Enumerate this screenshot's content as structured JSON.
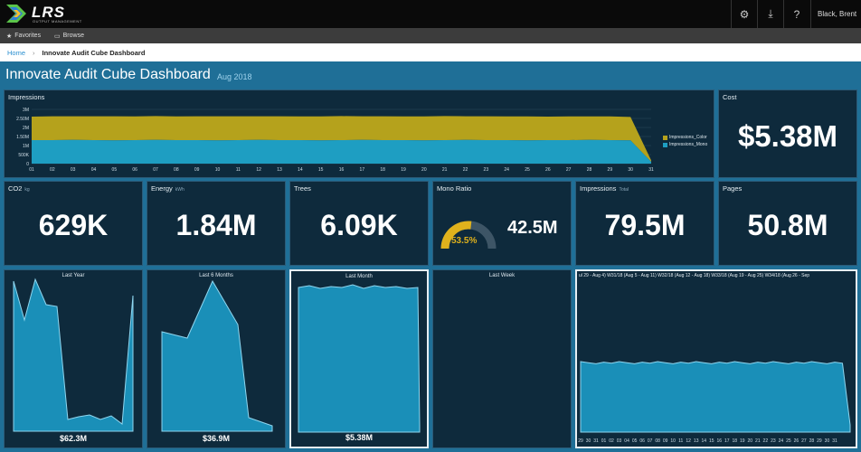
{
  "app": {
    "logo_text": "LRS",
    "logo_sub": "OUTPUT MANAGEMENT",
    "icons": [
      "gear-icon",
      "download-icon",
      "help-icon"
    ],
    "icon_glyphs": [
      "⚙",
      "⤓",
      "?"
    ],
    "user": "Black, Brent"
  },
  "favbar": {
    "favorites": "Favorites",
    "browse": "Browse"
  },
  "breadcrumb": {
    "home": "Home",
    "separator": "›",
    "current": "Innovate Audit Cube Dashboard"
  },
  "dashboard": {
    "title": "Innovate Audit Cube Dashboard",
    "period": "Aug 2018"
  },
  "impressions_chart": {
    "title": "Impressions",
    "legend": [
      "Impressions_Color",
      "Impressions_Mono"
    ]
  },
  "cost": {
    "title": "Cost",
    "value": "$5.38M"
  },
  "kpis": [
    {
      "title": "CO2",
      "unit": "kg",
      "value": "629K"
    },
    {
      "title": "Energy",
      "unit": "kWh",
      "value": "1.84M"
    },
    {
      "title": "Trees",
      "unit": "",
      "value": "6.09K"
    },
    {
      "title": "Mono Ratio",
      "unit": "",
      "value": "42.5M",
      "gauge_label": "53.5%"
    },
    {
      "title": "Impressions",
      "unit": "Total",
      "value": "79.5M"
    },
    {
      "title": "Pages",
      "unit": "",
      "value": "50.8M"
    }
  ],
  "sparks": [
    {
      "title": "Last Year",
      "value": "$62.3M"
    },
    {
      "title": "Last 6 Months",
      "value": "$36.9M"
    },
    {
      "title": "Last Month",
      "value": "$5.38M"
    },
    {
      "title": "Last Week",
      "value": ""
    }
  ],
  "weekly": {
    "labels": "ul 29 - Aug 4)   W31/18 (Aug 5 - Aug 11)  W32/18 (Aug 12 - Aug 18)  W33/18 (Aug 19 - Aug 25)  W34/18 (Aug 26 - Sep"
  },
  "colors": {
    "tile_bg": "#0e2a3c",
    "page_bg": "#1f6f97",
    "color_series": "#b5a21c",
    "mono_series": "#1e9ec2",
    "gauge": "#e0b21c"
  },
  "chart_data": {
    "type": "area",
    "title": "Impressions",
    "x": [
      "01",
      "02",
      "03",
      "04",
      "05",
      "06",
      "07",
      "08",
      "09",
      "10",
      "11",
      "12",
      "13",
      "14",
      "15",
      "16",
      "17",
      "18",
      "19",
      "20",
      "21",
      "22",
      "23",
      "24",
      "25",
      "26",
      "27",
      "28",
      "29",
      "30",
      "31"
    ],
    "y_ticks": [
      "0",
      "500K",
      "1M",
      "1.50M",
      "2M",
      "2.50M",
      "3M"
    ],
    "ylim": [
      0,
      3000000
    ],
    "series": [
      {
        "name": "Impressions_Mono",
        "values": [
          1300000,
          1300000,
          1310000,
          1300000,
          1290000,
          1300000,
          1310000,
          1300000,
          1300000,
          1290000,
          1300000,
          1310000,
          1300000,
          1300000,
          1290000,
          1300000,
          1310000,
          1300000,
          1300000,
          1290000,
          1300000,
          1310000,
          1300000,
          1300000,
          1290000,
          1300000,
          1300000,
          1310000,
          1300000,
          1290000,
          100000
        ]
      },
      {
        "name": "Impressions_Color",
        "values": [
          1300000,
          1320000,
          1310000,
          1320000,
          1330000,
          1310000,
          1320000,
          1310000,
          1320000,
          1330000,
          1320000,
          1310000,
          1320000,
          1310000,
          1320000,
          1330000,
          1310000,
          1320000,
          1310000,
          1320000,
          1330000,
          1310000,
          1320000,
          1310000,
          1320000,
          1300000,
          1310000,
          1300000,
          1310000,
          1290000,
          80000
        ]
      }
    ],
    "legend": "right",
    "grid": true
  }
}
